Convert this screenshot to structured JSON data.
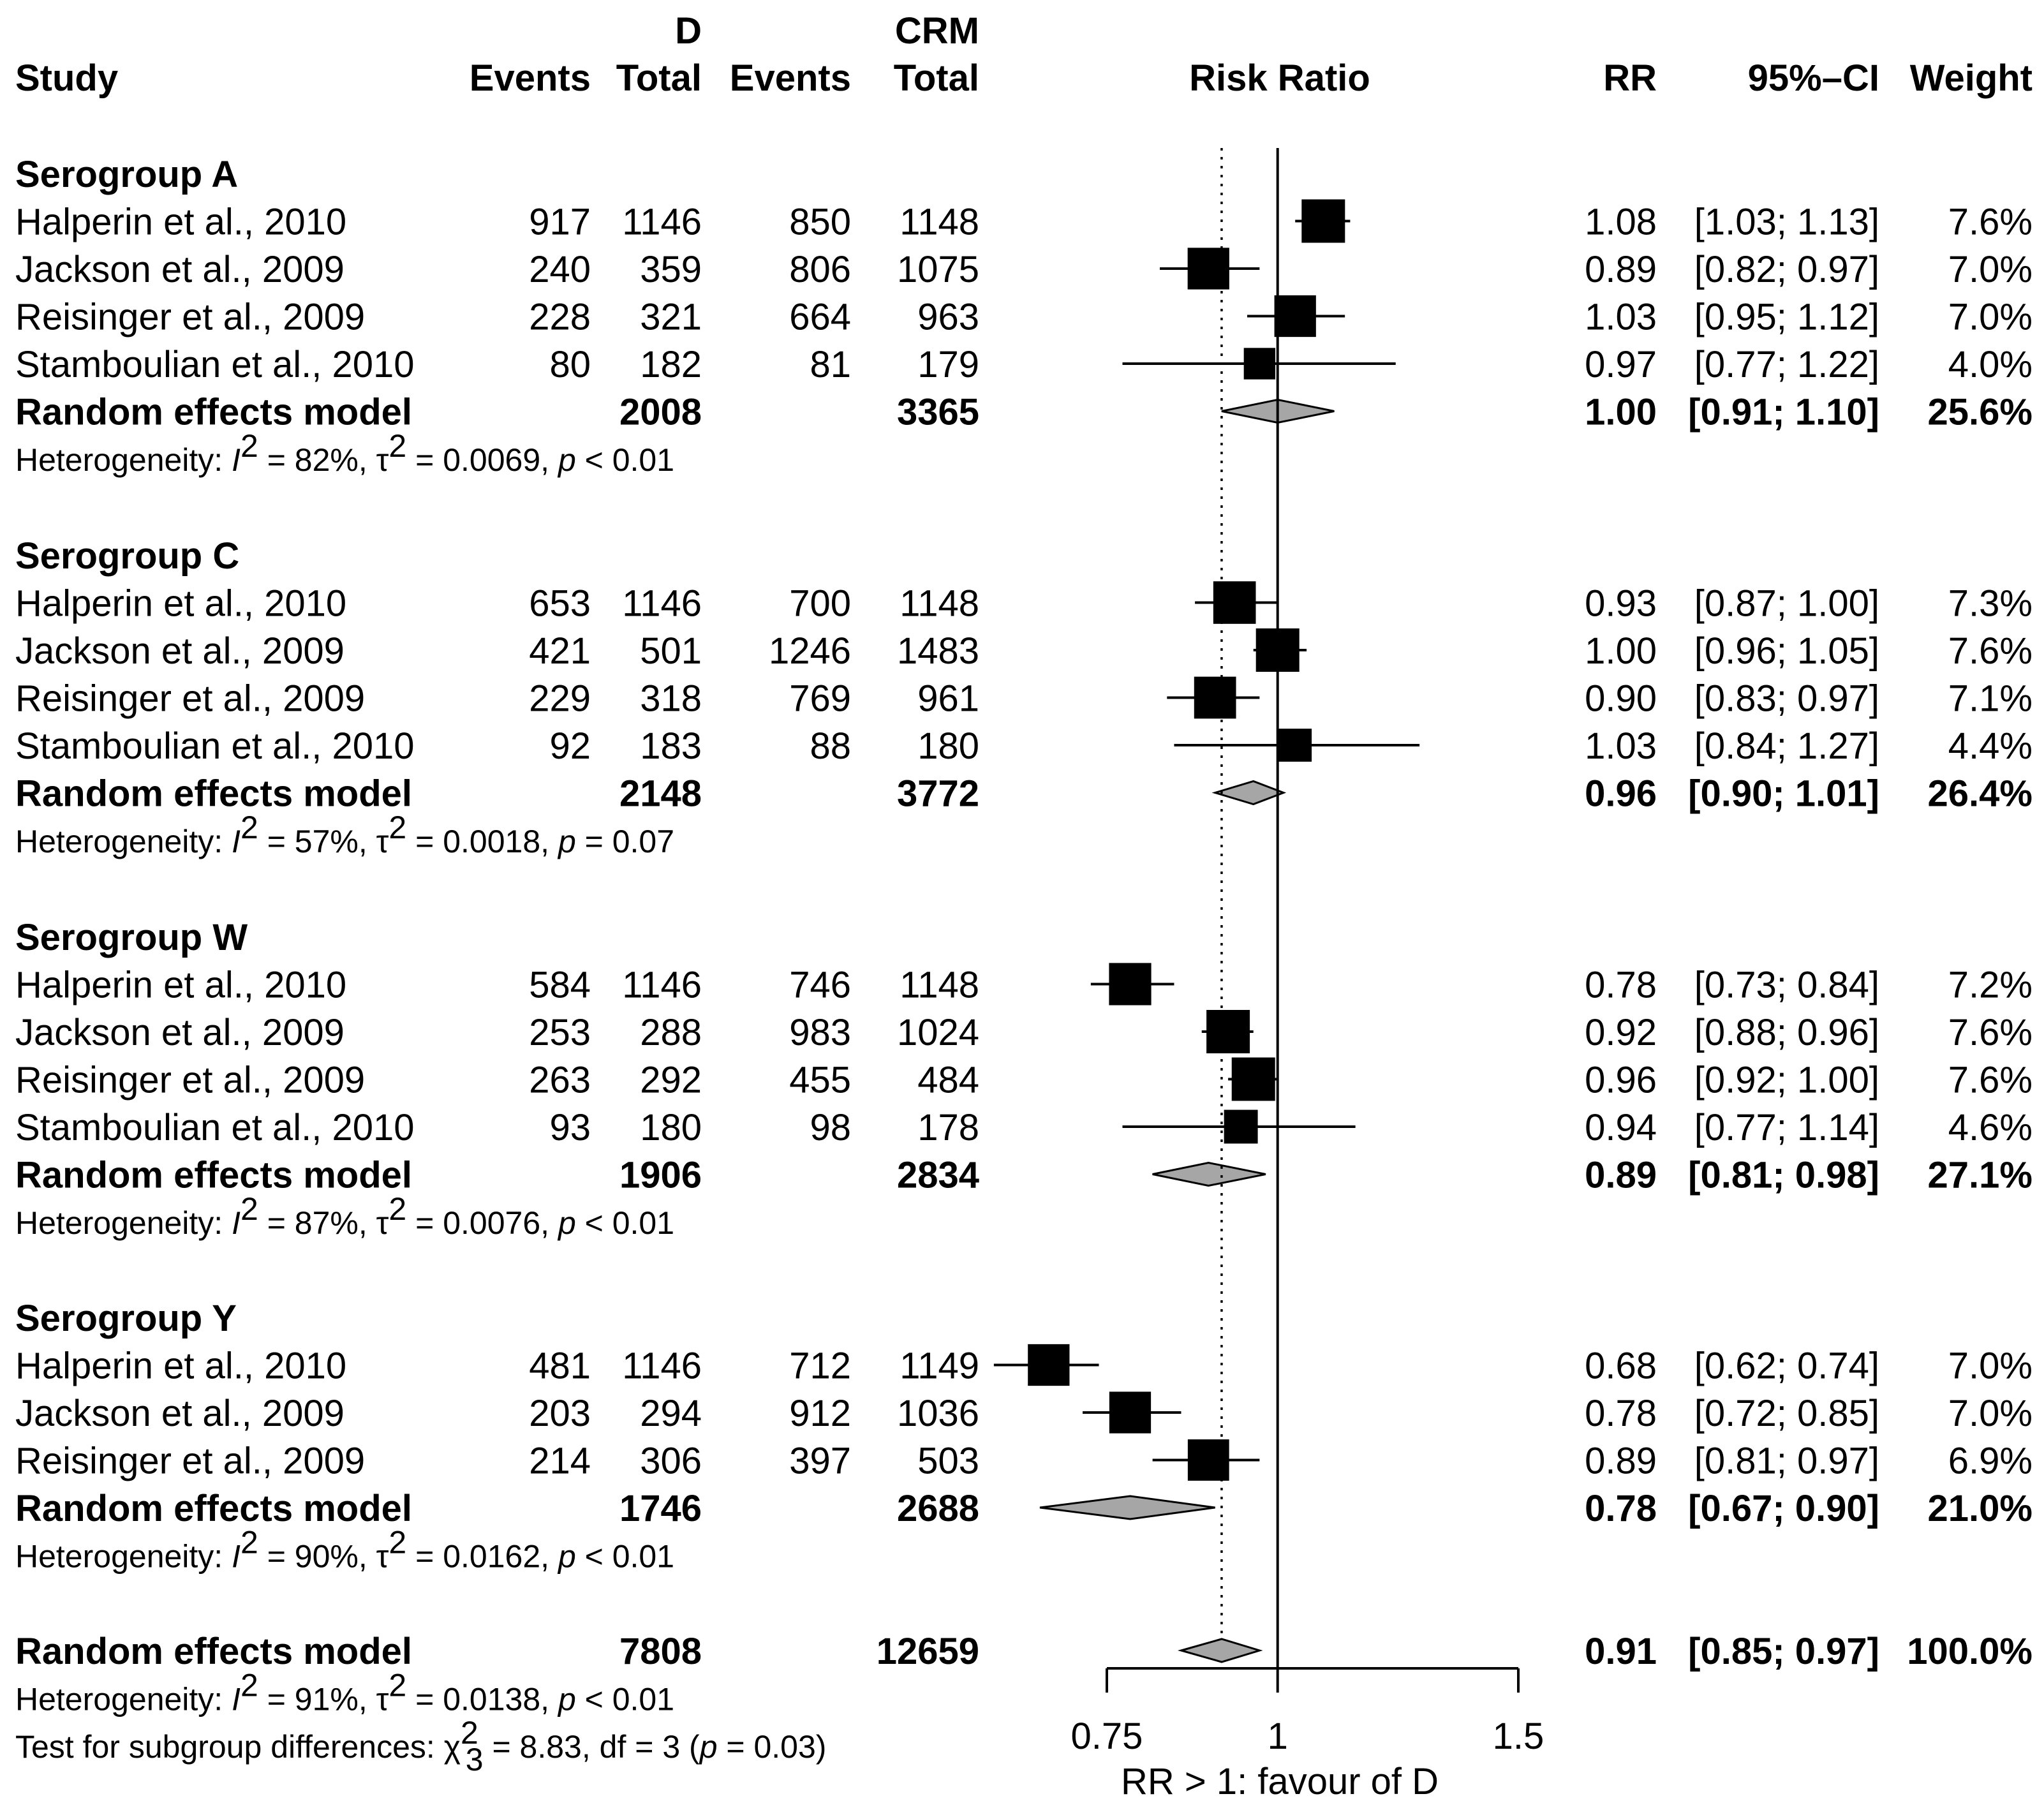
{
  "chart_data": {
    "type": "forest",
    "title": "",
    "xlabel": "RR > 1: favour of D",
    "x_scale": "log",
    "xlim": [
      0.75,
      1.5
    ],
    "x_ticks": [
      {
        "value": 0.75,
        "label": "0.75"
      },
      {
        "value": 1,
        "label": "1"
      },
      {
        "value": 1.5,
        "label": "1.5"
      }
    ],
    "reference_line": 1,
    "pooled_line": 0.91,
    "headers": {
      "group_d": "D",
      "group_crm": "CRM",
      "study": "Study",
      "events_d": "Events",
      "total_d": "Total",
      "events_crm": "Events",
      "total_crm": "Total",
      "risk_ratio": "Risk Ratio",
      "rr": "RR",
      "ci": "95%–CI",
      "weight": "Weight"
    },
    "subgroups": [
      {
        "title": "Serogroup A",
        "studies": [
          {
            "study": "Halperin et al., 2010",
            "ev_d": "917",
            "n_d": "1146",
            "ev_c": "850",
            "n_c": "1148",
            "rr": 1.08,
            "lo": 1.03,
            "hi": 1.13,
            "rr_text": "1.08",
            "ci_text": "[1.03; 1.13]",
            "weight": 7.6,
            "weight_text": "7.6%"
          },
          {
            "study": "Jackson et al., 2009",
            "ev_d": "240",
            "n_d": "359",
            "ev_c": "806",
            "n_c": "1075",
            "rr": 0.89,
            "lo": 0.82,
            "hi": 0.97,
            "rr_text": "0.89",
            "ci_text": "[0.82; 0.97]",
            "weight": 7.0,
            "weight_text": "7.0%"
          },
          {
            "study": "Reisinger et al., 2009",
            "ev_d": "228",
            "n_d": "321",
            "ev_c": "664",
            "n_c": "963",
            "rr": 1.03,
            "lo": 0.95,
            "hi": 1.12,
            "rr_text": "1.03",
            "ci_text": "[0.95; 1.12]",
            "weight": 7.0,
            "weight_text": "7.0%"
          },
          {
            "study": "Stamboulian et al., 2010",
            "ev_d": "80",
            "n_d": "182",
            "ev_c": "81",
            "n_c": "179",
            "rr": 0.97,
            "lo": 0.77,
            "hi": 1.22,
            "rr_text": "0.97",
            "ci_text": "[0.77; 1.22]",
            "weight": 4.0,
            "weight_text": "4.0%"
          }
        ],
        "model": {
          "label": "Random effects model",
          "n_d": "2008",
          "n_c": "3365",
          "rr": 1.0,
          "lo": 0.91,
          "hi": 1.1,
          "rr_text": "1.00",
          "ci_text": "[0.91; 1.10]",
          "weight_text": "25.6%"
        },
        "heterogeneity": {
          "prefix": "Heterogeneity: ",
          "i2": "= 82%, ",
          "tau2": "= 0.0069, ",
          "p": " < 0.01"
        }
      },
      {
        "title": "Serogroup C",
        "studies": [
          {
            "study": "Halperin et al., 2010",
            "ev_d": "653",
            "n_d": "1146",
            "ev_c": "700",
            "n_c": "1148",
            "rr": 0.93,
            "lo": 0.87,
            "hi": 1.0,
            "rr_text": "0.93",
            "ci_text": "[0.87; 1.00]",
            "weight": 7.3,
            "weight_text": "7.3%"
          },
          {
            "study": "Jackson et al., 2009",
            "ev_d": "421",
            "n_d": "501",
            "ev_c": "1246",
            "n_c": "1483",
            "rr": 1.0,
            "lo": 0.96,
            "hi": 1.05,
            "rr_text": "1.00",
            "ci_text": "[0.96; 1.05]",
            "weight": 7.6,
            "weight_text": "7.6%"
          },
          {
            "study": "Reisinger et al., 2009",
            "ev_d": "229",
            "n_d": "318",
            "ev_c": "769",
            "n_c": "961",
            "rr": 0.9,
            "lo": 0.83,
            "hi": 0.97,
            "rr_text": "0.90",
            "ci_text": "[0.83; 0.97]",
            "weight": 7.1,
            "weight_text": "7.1%"
          },
          {
            "study": "Stamboulian et al., 2010",
            "ev_d": "92",
            "n_d": "183",
            "ev_c": "88",
            "n_c": "180",
            "rr": 1.03,
            "lo": 0.84,
            "hi": 1.27,
            "rr_text": "1.03",
            "ci_text": "[0.84; 1.27]",
            "weight": 4.4,
            "weight_text": "4.4%"
          }
        ],
        "model": {
          "label": "Random effects model",
          "n_d": "2148",
          "n_c": "3772",
          "rr": 0.96,
          "lo": 0.9,
          "hi": 1.01,
          "rr_text": "0.96",
          "ci_text": "[0.90; 1.01]",
          "weight_text": "26.4%"
        },
        "heterogeneity": {
          "prefix": "Heterogeneity: ",
          "i2": "= 57%, ",
          "tau2": "= 0.0018, ",
          "p": " = 0.07"
        }
      },
      {
        "title": "Serogroup W",
        "studies": [
          {
            "study": "Halperin et al., 2010",
            "ev_d": "584",
            "n_d": "1146",
            "ev_c": "746",
            "n_c": "1148",
            "rr": 0.78,
            "lo": 0.73,
            "hi": 0.84,
            "rr_text": "0.78",
            "ci_text": "[0.73; 0.84]",
            "weight": 7.2,
            "weight_text": "7.2%"
          },
          {
            "study": "Jackson et al., 2009",
            "ev_d": "253",
            "n_d": "288",
            "ev_c": "983",
            "n_c": "1024",
            "rr": 0.92,
            "lo": 0.88,
            "hi": 0.96,
            "rr_text": "0.92",
            "ci_text": "[0.88; 0.96]",
            "weight": 7.6,
            "weight_text": "7.6%"
          },
          {
            "study": "Reisinger et al., 2009",
            "ev_d": "263",
            "n_d": "292",
            "ev_c": "455",
            "n_c": "484",
            "rr": 0.96,
            "lo": 0.92,
            "hi": 1.0,
            "rr_text": "0.96",
            "ci_text": "[0.92; 1.00]",
            "weight": 7.6,
            "weight_text": "7.6%"
          },
          {
            "study": "Stamboulian et al., 2010",
            "ev_d": "93",
            "n_d": "180",
            "ev_c": "98",
            "n_c": "178",
            "rr": 0.94,
            "lo": 0.77,
            "hi": 1.14,
            "rr_text": "0.94",
            "ci_text": "[0.77; 1.14]",
            "weight": 4.6,
            "weight_text": "4.6%"
          }
        ],
        "model": {
          "label": "Random effects model",
          "n_d": "1906",
          "n_c": "2834",
          "rr": 0.89,
          "lo": 0.81,
          "hi": 0.98,
          "rr_text": "0.89",
          "ci_text": "[0.81; 0.98]",
          "weight_text": "27.1%"
        },
        "heterogeneity": {
          "prefix": "Heterogeneity: ",
          "i2": "= 87%, ",
          "tau2": "= 0.0076, ",
          "p": " < 0.01"
        }
      },
      {
        "title": "Serogroup Y",
        "studies": [
          {
            "study": "Halperin et al., 2010",
            "ev_d": "481",
            "n_d": "1146",
            "ev_c": "712",
            "n_c": "1149",
            "rr": 0.68,
            "lo": 0.62,
            "hi": 0.74,
            "rr_text": "0.68",
            "ci_text": "[0.62; 0.74]",
            "weight": 7.0,
            "weight_text": "7.0%"
          },
          {
            "study": "Jackson et al., 2009",
            "ev_d": "203",
            "n_d": "294",
            "ev_c": "912",
            "n_c": "1036",
            "rr": 0.78,
            "lo": 0.72,
            "hi": 0.85,
            "rr_text": "0.78",
            "ci_text": "[0.72; 0.85]",
            "weight": 7.0,
            "weight_text": "7.0%"
          },
          {
            "study": "Reisinger et al., 2009",
            "ev_d": "214",
            "n_d": "306",
            "ev_c": "397",
            "n_c": "503",
            "rr": 0.89,
            "lo": 0.81,
            "hi": 0.97,
            "rr_text": "0.89",
            "ci_text": "[0.81; 0.97]",
            "weight": 6.9,
            "weight_text": "6.9%"
          }
        ],
        "model": {
          "label": "Random effects model",
          "n_d": "1746",
          "n_c": "2688",
          "rr": 0.78,
          "lo": 0.67,
          "hi": 0.9,
          "rr_text": "0.78",
          "ci_text": "[0.67; 0.90]",
          "weight_text": "21.0%"
        },
        "heterogeneity": {
          "prefix": "Heterogeneity: ",
          "i2": "= 90%, ",
          "tau2": "= 0.0162, ",
          "p": " < 0.01"
        }
      }
    ],
    "overall": {
      "label": "Random effects model",
      "n_d": "7808",
      "n_c": "12659",
      "rr": 0.91,
      "lo": 0.85,
      "hi": 0.97,
      "rr_text": "0.91",
      "ci_text": "[0.85; 0.97]",
      "weight_text": "100.0%",
      "heterogeneity": {
        "prefix": "Heterogeneity: ",
        "i2": "= 91%, ",
        "tau2": "= 0.0138, ",
        "p": " < 0.01"
      }
    },
    "subgroup_test": {
      "prefix": "Test for subgroup differences: ",
      "chi": "χ",
      "chi_sup": "2",
      "chi_sub": "3",
      "rest": " = 8.83, df = 3 (",
      "p": "p",
      "p_val": " = 0.03)"
    },
    "symbols": {
      "I": "I",
      "sup2": "2",
      "tau": "τ",
      "p": "p"
    },
    "colors": {
      "square": "#000000",
      "diamond_fill": "#a6a6a6",
      "line": "#000000"
    }
  }
}
